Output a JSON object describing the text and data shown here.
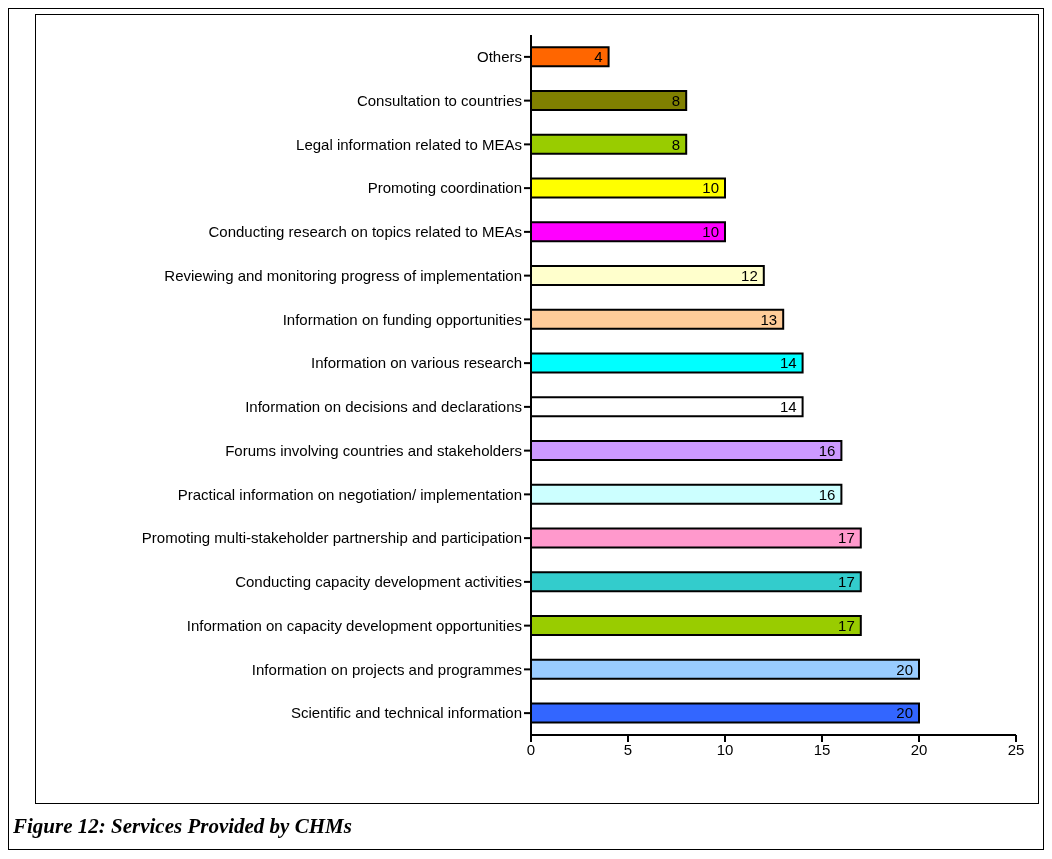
{
  "chart_data": {
    "type": "bar",
    "orientation": "horizontal",
    "categories": [
      "Others",
      "Consultation to countries",
      "Legal information related to MEAs",
      "Promoting coordination",
      "Conducting research on topics related to MEAs",
      "Reviewing and monitoring progress of implementation",
      "Information on funding opportunities",
      "Information on various research",
      "Information on decisions and declarations",
      "Forums involving countries and stakeholders",
      "Practical information on negotiation/ implementation",
      "Promoting multi-stakeholder partnership and participation",
      "Conducting capacity development activities",
      "Information on capacity development opportunities",
      "Information on projects and programmes",
      "Scientific and technical information"
    ],
    "values": [
      4,
      8,
      8,
      10,
      10,
      12,
      13,
      14,
      14,
      16,
      16,
      17,
      17,
      17,
      20,
      20
    ],
    "colors": [
      "#ff6600",
      "#808000",
      "#99cc00",
      "#ffff00",
      "#ff00ff",
      "#ffffcc",
      "#ffcc99",
      "#00ffff",
      "#ffffff",
      "#cc99ff",
      "#ccffff",
      "#ff99cc",
      "#33cccc",
      "#99cc00",
      "#99ccff",
      "#3366ff"
    ],
    "xlim": [
      0,
      25
    ],
    "xticks": [
      0,
      5,
      10,
      15,
      20,
      25
    ],
    "grid": false,
    "legend": false,
    "data_labels": true,
    "annotations": [
      "Figure 12: Services Provided by CHMs"
    ]
  }
}
